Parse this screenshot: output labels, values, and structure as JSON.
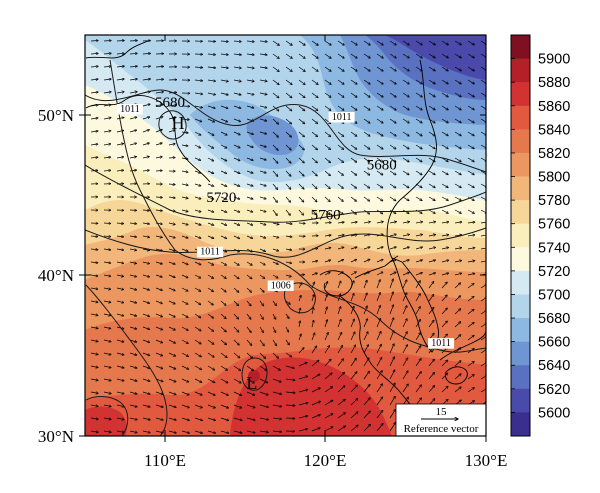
{
  "map": {
    "lat_labels": [
      "50°N",
      "40°N",
      "30°N"
    ],
    "lon_labels": [
      "110°E",
      "120°E",
      "130°E"
    ],
    "extent": {
      "lon": [
        105,
        130
      ],
      "lat": [
        30,
        55
      ]
    },
    "centers": [
      {
        "label": "H",
        "lon": 110.8,
        "lat": 49.5
      },
      {
        "label": "L",
        "lon": 115.4,
        "lat": 33.3
      }
    ],
    "contour_labels": [
      {
        "text": "5680",
        "lon": 110.3,
        "lat": 50.5
      },
      {
        "text": "1011",
        "lon": 107.8,
        "lat": 50.2
      },
      {
        "text": "1011",
        "lon": 121.0,
        "lat": 49.7
      },
      {
        "text": "5680",
        "lon": 123.5,
        "lat": 46.6
      },
      {
        "text": "5720",
        "lon": 113.5,
        "lat": 44.6
      },
      {
        "text": "5760",
        "lon": 120.0,
        "lat": 43.5
      },
      {
        "text": "1011",
        "lon": 112.8,
        "lat": 41.3
      },
      {
        "text": "1006",
        "lon": 117.2,
        "lat": 39.2
      },
      {
        "text": "1011",
        "lon": 127.2,
        "lat": 35.6
      }
    ],
    "reference_vector": {
      "value": "15",
      "label": "Reference vector"
    }
  },
  "colorbar": {
    "ticks": [
      "5900",
      "5880",
      "5860",
      "5840",
      "5820",
      "5800",
      "5780",
      "5760",
      "5740",
      "5720",
      "5700",
      "5680",
      "5660",
      "5640",
      "5620",
      "5600"
    ],
    "colors": [
      "#7e1022",
      "#b51f28",
      "#d33232",
      "#e15a3f",
      "#e5784d",
      "#ec9760",
      "#f3b67a",
      "#f7d699",
      "#fbeebd",
      "#fdf9df",
      "#d5e9f2",
      "#b3d5ec",
      "#8db8e2",
      "#6f96d2",
      "#5a70c1",
      "#4a4aab",
      "#3a2e8e"
    ]
  },
  "colors": {
    "map_frame": "#000000",
    "coast": "#000000",
    "contour": "#1a1a1a"
  }
}
